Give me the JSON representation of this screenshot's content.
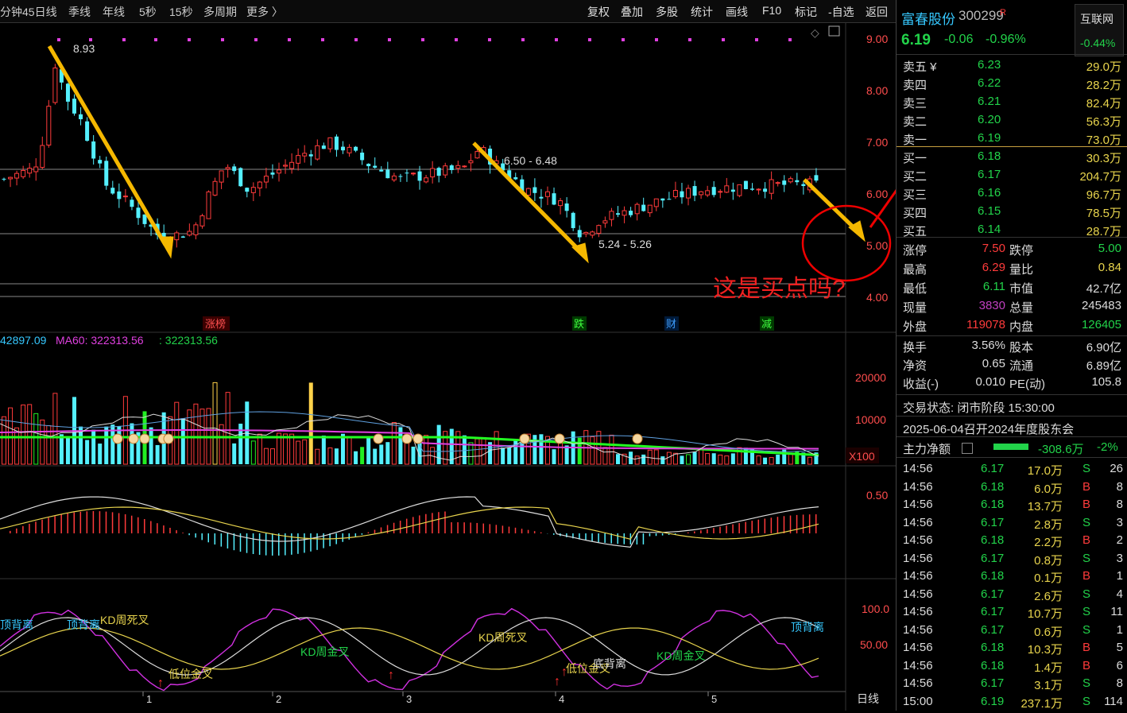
{
  "toolbar": {
    "left": [
      "分钟",
      "45日线",
      "季线",
      "年线",
      "5秒",
      "15秒",
      "多周期",
      "更多 〉"
    ],
    "right": [
      "复权",
      "叠加",
      "多股",
      "统计",
      "画线",
      "F10",
      "标记",
      "-自选",
      "返回"
    ]
  },
  "chart": {
    "price_axis": [
      "9.00",
      "8.00",
      "7.00",
      "6.00",
      "5.00",
      "4.00"
    ],
    "high_label": "8.93",
    "range1": "6.50 - 6.48",
    "range2": "5.24 - 5.26",
    "question": "这是买点吗?",
    "markers": [
      "涨榜",
      "跌",
      "财",
      "减"
    ],
    "ma_label_white": "42897.09",
    "ma60_label": "MA60: 322313.56",
    "ma60_val": ": 322313.56",
    "vol_axis": [
      "20000",
      "10000"
    ],
    "vol_unit": "X100",
    "macd_axis": "0.50",
    "kdj_axis": [
      "100.0",
      "50.00"
    ],
    "kdj_labels": [
      "顶背离",
      "顶背离",
      "KD周死叉",
      "低位金叉",
      "KD周金叉",
      "KD周死叉",
      "低位金叉",
      "底背离",
      "KD周金叉",
      "顶背离"
    ],
    "x_ticks": [
      "1",
      "2",
      "3",
      "4",
      "5"
    ],
    "period": "日线"
  },
  "quote": {
    "name": "富春股份",
    "code": "300299",
    "badge": "R",
    "sector": "互联网",
    "sector_chg": "-0.44%",
    "price": "6.19",
    "change": "-0.06",
    "pct": "-0.96%",
    "asks": [
      {
        "label": "卖五 ¥",
        "price": "6.23",
        "vol": "29.0万"
      },
      {
        "label": "卖四",
        "price": "6.22",
        "vol": "28.2万"
      },
      {
        "label": "卖三",
        "price": "6.21",
        "vol": "82.4万"
      },
      {
        "label": "卖二",
        "price": "6.20",
        "vol": "56.3万"
      },
      {
        "label": "卖一",
        "price": "6.19",
        "vol": "73.0万"
      }
    ],
    "bids": [
      {
        "label": "买一",
        "price": "6.18",
        "vol": "30.3万"
      },
      {
        "label": "买二",
        "price": "6.17",
        "vol": "204.7万"
      },
      {
        "label": "买三",
        "price": "6.16",
        "vol": "96.7万"
      },
      {
        "label": "买四",
        "price": "6.15",
        "vol": "78.5万"
      },
      {
        "label": "买五",
        "price": "6.14",
        "vol": "28.7万"
      }
    ],
    "stats": [
      {
        "l1": "涨停",
        "v1": "7.50",
        "l2": "跌停",
        "v2": "5.00"
      },
      {
        "l1": "最高",
        "v1": "6.29",
        "l2": "量比",
        "v2": "0.84"
      },
      {
        "l1": "最低",
        "v1": "6.11",
        "l2": "市值",
        "v2": "42.7亿"
      },
      {
        "l1": "现量",
        "v1": "3830",
        "l2": "总量",
        "v2": "245483"
      },
      {
        "l1": "外盘",
        "v1": "119078",
        "l2": "内盘",
        "v2": "126405"
      }
    ],
    "stats2": [
      {
        "l1": "换手",
        "v1": "3.56%",
        "l2": "股本",
        "v2": "6.90亿"
      },
      {
        "l1": "净资",
        "v1": "0.65",
        "l2": "流通",
        "v2": "6.89亿"
      },
      {
        "l1": "收益(-)",
        "v1": "0.010",
        "l2": "PE(动)",
        "v2": "105.8"
      }
    ],
    "status": "交易状态: 闭市阶段 15:30:00",
    "notice": "2025-06-04召开2024年度股东会",
    "flow_label": "主力净额",
    "flow_val": "-308.6万",
    "flow_pct": "-2%",
    "ticks": [
      {
        "t": "14:56",
        "p": "6.17",
        "v": "17.0万",
        "s": "S",
        "n": "26"
      },
      {
        "t": "14:56",
        "p": "6.18",
        "v": "6.0万",
        "s": "B",
        "n": "8"
      },
      {
        "t": "14:56",
        "p": "6.18",
        "v": "13.7万",
        "s": "B",
        "n": "8"
      },
      {
        "t": "14:56",
        "p": "6.17",
        "v": "2.8万",
        "s": "S",
        "n": "3"
      },
      {
        "t": "14:56",
        "p": "6.18",
        "v": "2.2万",
        "s": "B",
        "n": "2"
      },
      {
        "t": "14:56",
        "p": "6.17",
        "v": "0.8万",
        "s": "S",
        "n": "3"
      },
      {
        "t": "14:56",
        "p": "6.18",
        "v": "0.1万",
        "s": "B",
        "n": "1"
      },
      {
        "t": "14:56",
        "p": "6.17",
        "v": "2.6万",
        "s": "S",
        "n": "4"
      },
      {
        "t": "14:56",
        "p": "6.17",
        "v": "10.7万",
        "s": "S",
        "n": "11"
      },
      {
        "t": "14:56",
        "p": "6.17",
        "v": "0.6万",
        "s": "S",
        "n": "1"
      },
      {
        "t": "14:56",
        "p": "6.18",
        "v": "10.3万",
        "s": "B",
        "n": "5"
      },
      {
        "t": "14:56",
        "p": "6.18",
        "v": "1.4万",
        "s": "B",
        "n": "6"
      },
      {
        "t": "14:56",
        "p": "6.17",
        "v": "3.1万",
        "s": "S",
        "n": "8"
      },
      {
        "t": "15:00",
        "p": "6.19",
        "v": "237.1万",
        "s": "S",
        "n": "114"
      }
    ]
  },
  "colors": {
    "up": "#ff3b3b",
    "down": "#54f0ff",
    "ma": "#ffffff",
    "ma60": "#e040e0",
    "arrow": "#f5b800"
  }
}
